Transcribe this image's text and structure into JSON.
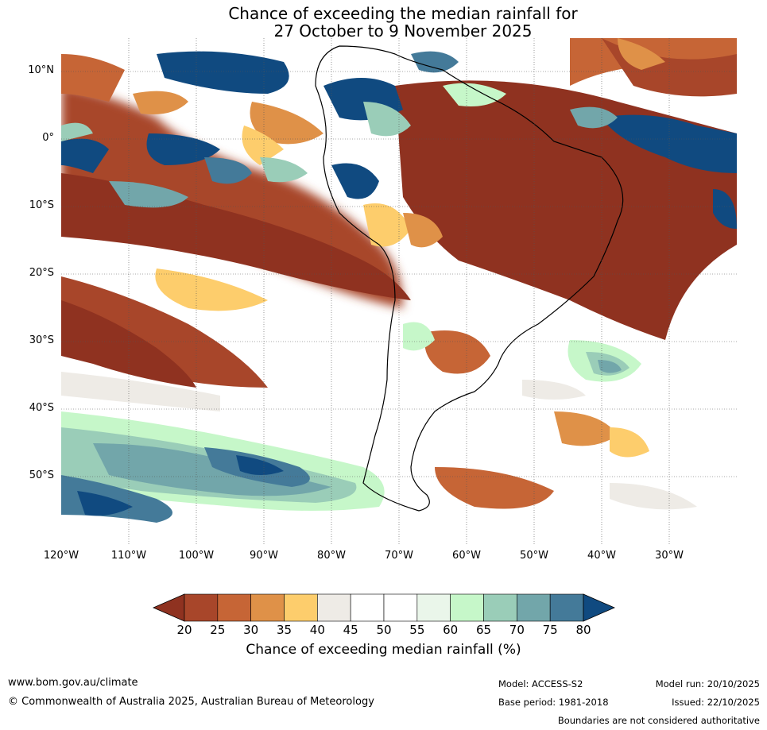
{
  "title": {
    "line1": "Chance of exceeding the median rainfall for",
    "line2": "27 October to 9 November 2025"
  },
  "map": {
    "lat_labels": [
      "10°N",
      "0°",
      "10°S",
      "20°S",
      "30°S",
      "40°S",
      "50°S"
    ],
    "lon_labels": [
      "120°W",
      "110°W",
      "100°W",
      "90°W",
      "80°W",
      "70°W",
      "60°W",
      "50°W",
      "40°W",
      "30°W"
    ],
    "lat_range": [
      -60,
      15
    ],
    "lon_range": [
      -120,
      -20
    ]
  },
  "legend": {
    "title": "Chance of exceeding median rainfall (%)",
    "ticks": [
      "20",
      "25",
      "30",
      "35",
      "40",
      "45",
      "50",
      "55",
      "60",
      "65",
      "70",
      "75",
      "80"
    ],
    "colors": [
      "#8f3220",
      "#a8462a",
      "#c66536",
      "#df9148",
      "#fdcd6c",
      "#eeebe6",
      "#ffffff",
      "#ffffff",
      "#eaf6ea",
      "#c6f7c9",
      "#9acdb8",
      "#72a6aa",
      "#447a99",
      "#104a80"
    ]
  },
  "footer": {
    "website": "www.bom.gov.au/climate",
    "copyright": "© Commonwealth of Australia 2025, Australian Bureau of Meteorology",
    "model": "Model: ACCESS-S2",
    "base_period": "Base period: 1981-2018",
    "model_run": "Model run: 20/10/2025",
    "issued": "Issued: 22/10/2025",
    "disclaimer": "Boundaries are not considered authoritative"
  }
}
